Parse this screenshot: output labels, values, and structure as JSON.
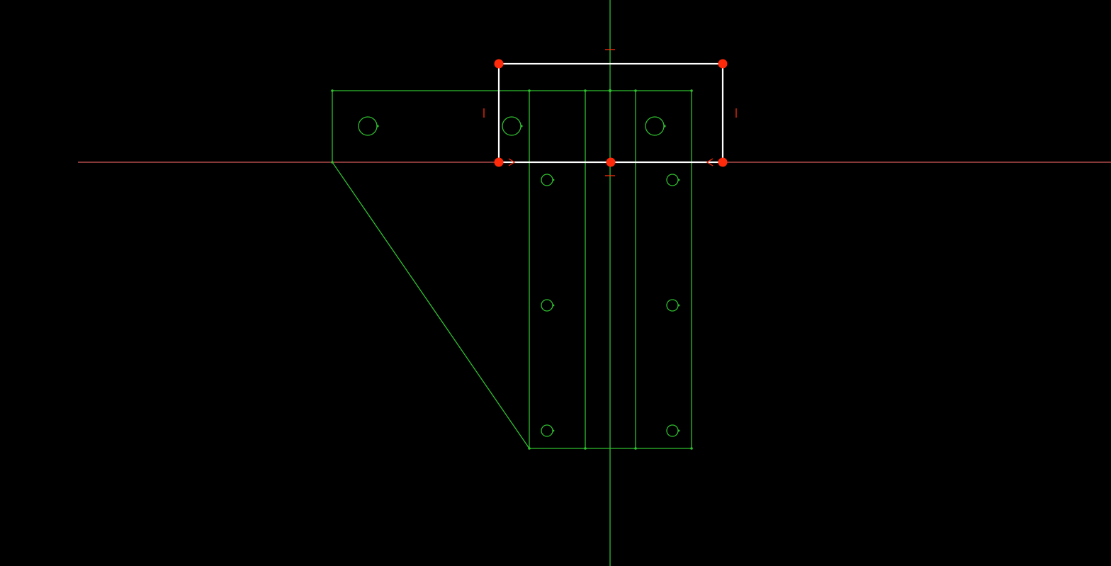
{
  "viewport": {
    "background": "#000000",
    "colors": {
      "geometry": "#2fbf2f",
      "x_axis": "#d45a5a",
      "y_axis": "#2fbf2f",
      "selection": "#ffffff",
      "grips": "#ff2a0a"
    },
    "state": {
      "selected_object": "rectangle",
      "grip_count": 5,
      "bolt_hole_count": 9
    }
  }
}
